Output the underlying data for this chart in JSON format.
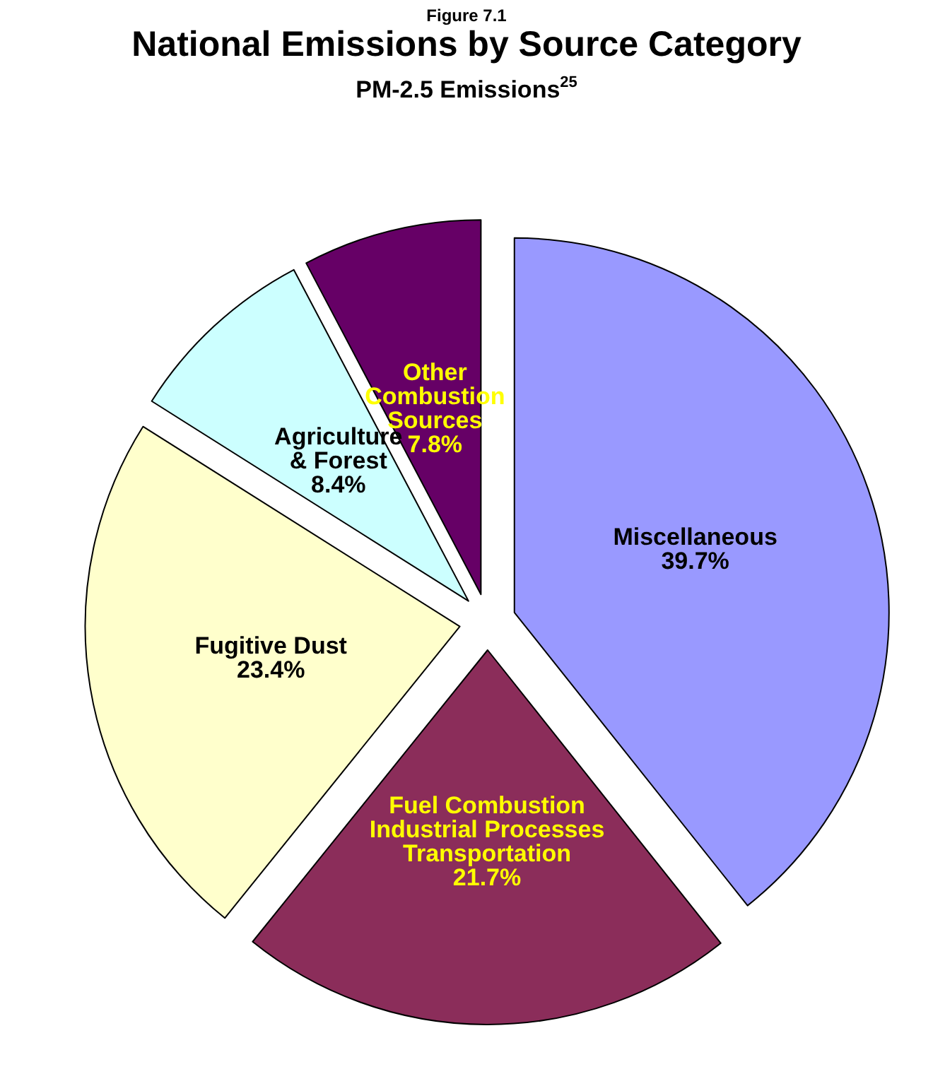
{
  "chart_data": {
    "type": "pie",
    "title": "National Emissions by Source Category",
    "subtitle": "PM-2.5 Emissions$^{25}$",
    "annotations": [
      "Figure 7.1"
    ],
    "categories": [
      "Miscellaneous",
      "Fuel Combustion\nIndustrial Processes\nTransportation",
      "Fugitive Dust",
      "Agriculture\n& Forest",
      "Other\nCombustion\nSources"
    ],
    "values": [
      39.7,
      21.7,
      23.4,
      8.4,
      7.8
    ],
    "colors": [
      "#9999ff",
      "#8b2d5a",
      "#ffffcc",
      "#ccffff",
      "#660066"
    ],
    "value_labels": [
      "39.7%",
      "21.7%",
      "23.4%",
      "8.4%",
      "7.8%"
    ],
    "legend": false
  }
}
